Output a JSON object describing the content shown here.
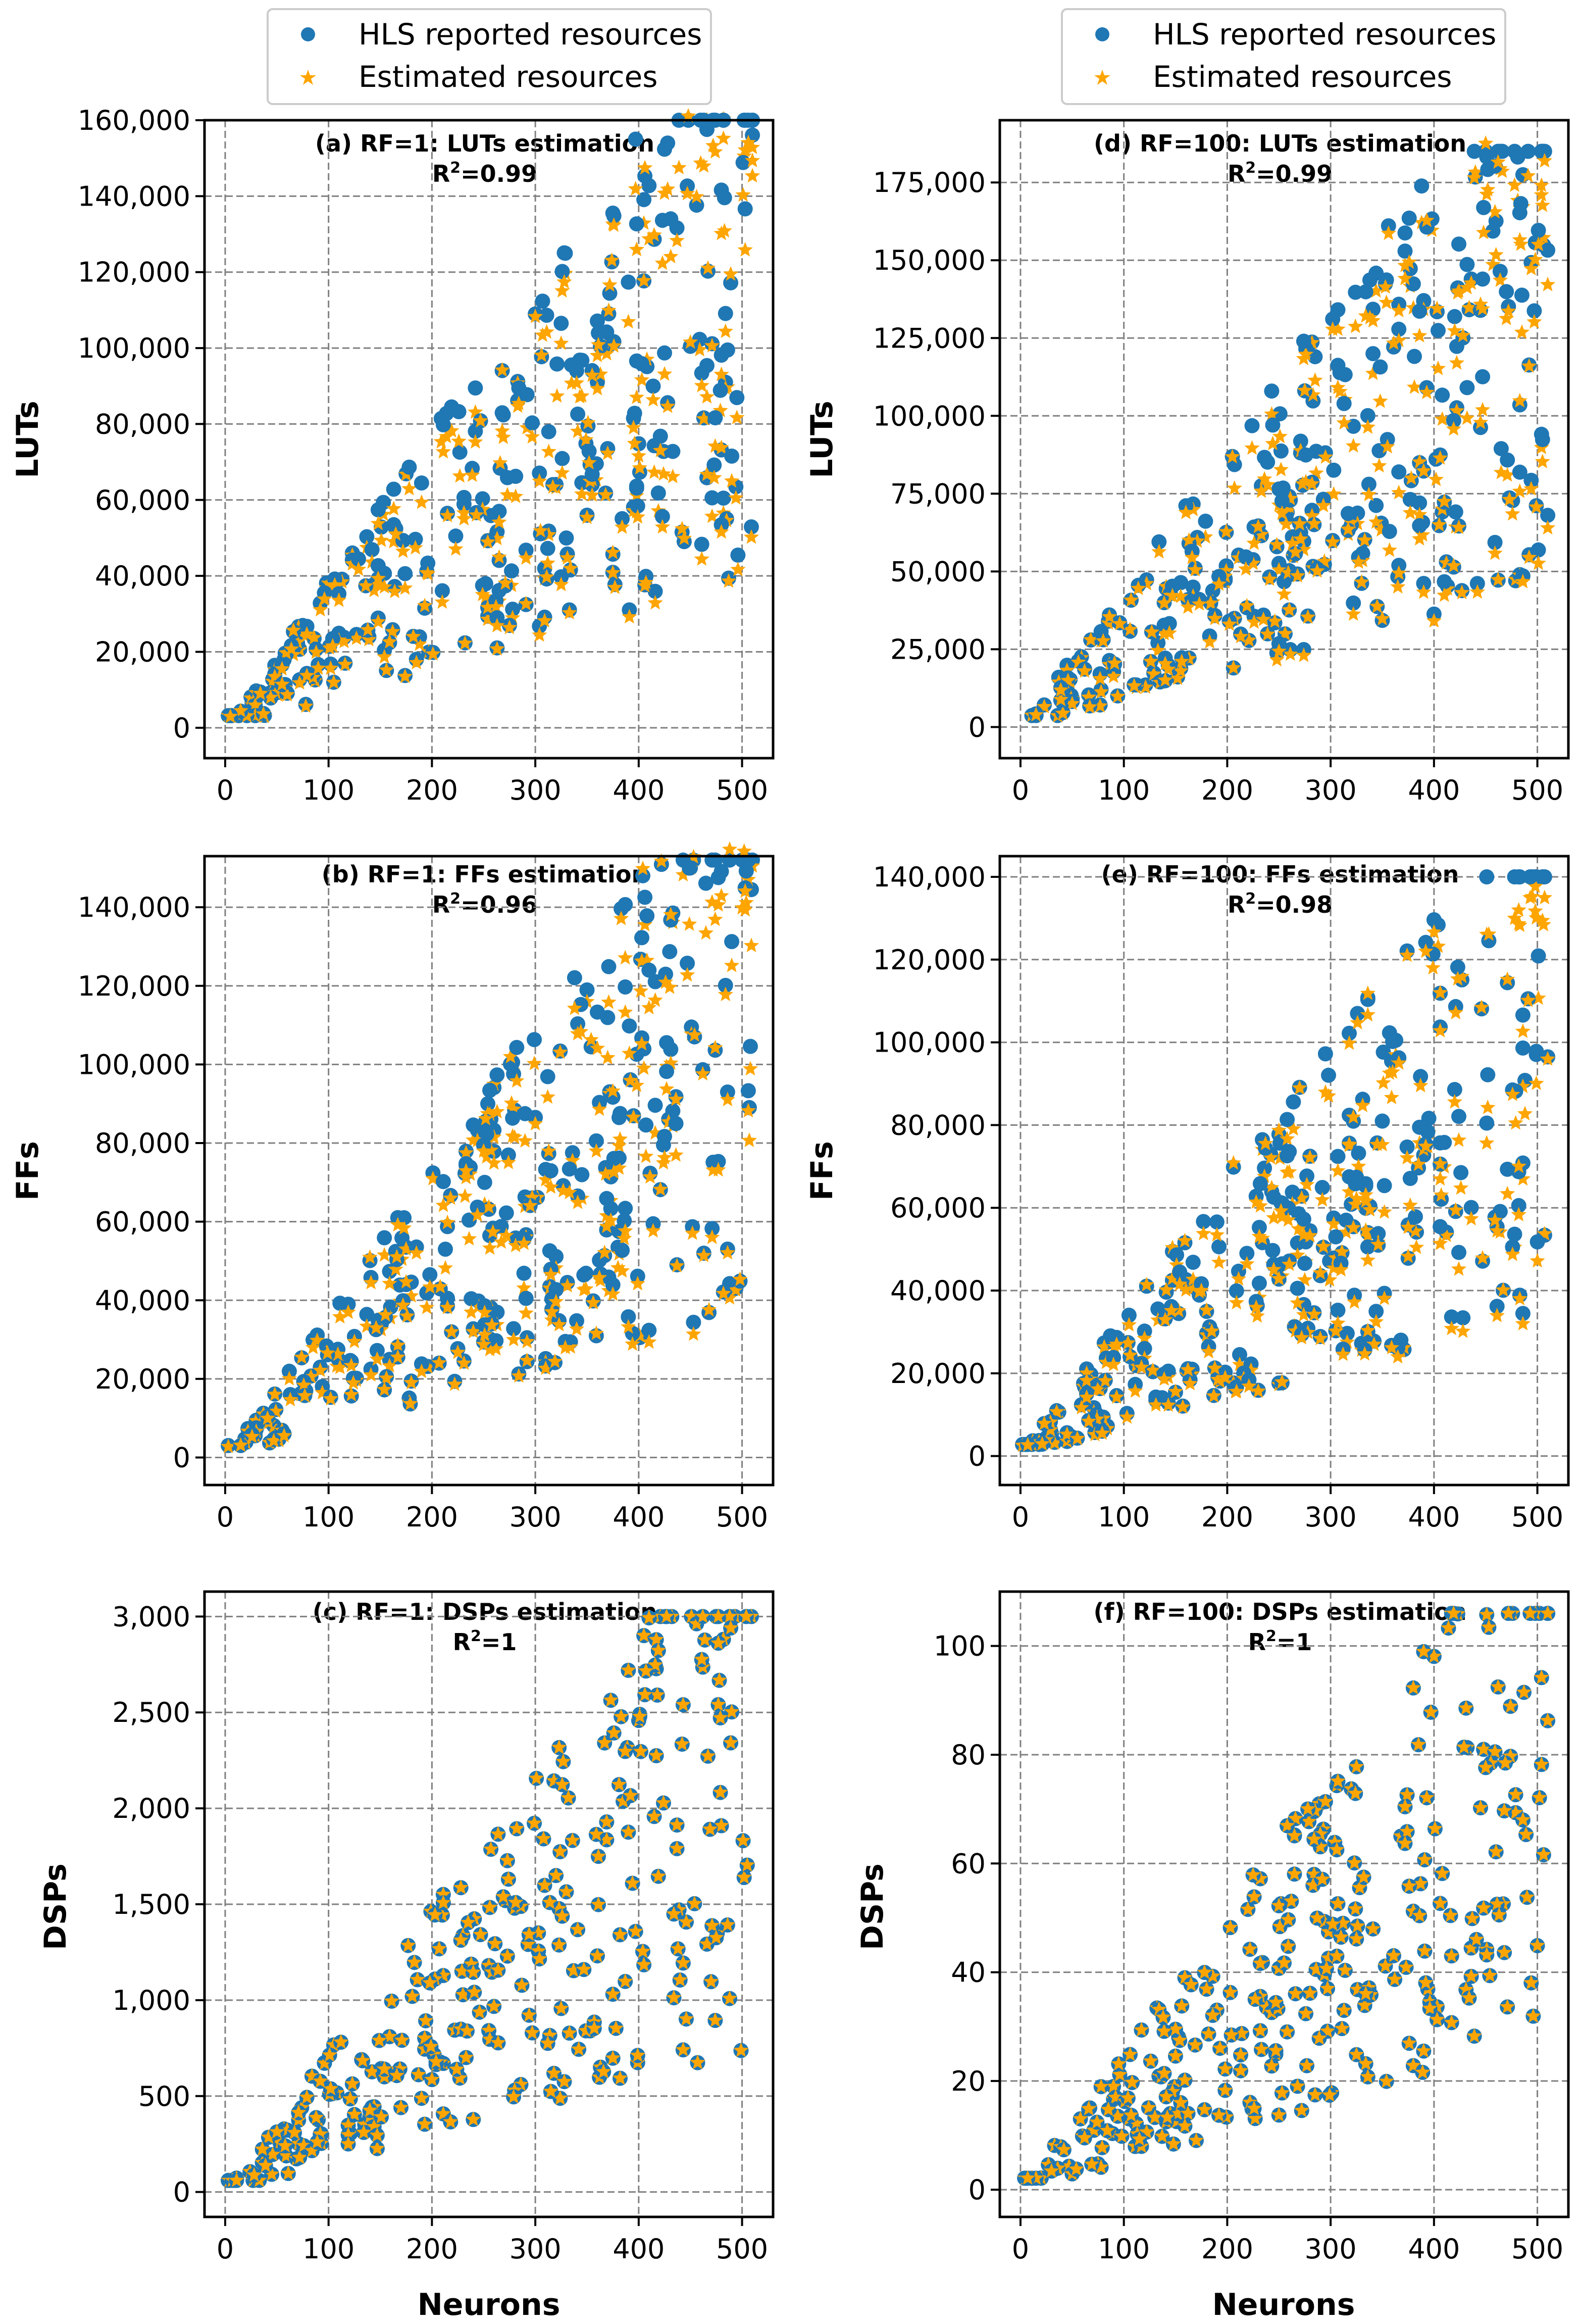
{
  "colors": {
    "reported": "#1f77b4",
    "estimated": "#ffa500",
    "grid": "#808080",
    "frame": "#000000"
  },
  "legend": {
    "reported_label": "HLS reported resources",
    "estimated_label": "Estimated resources"
  },
  "chart_data": [
    {
      "id": "a",
      "type": "scatter",
      "title": "(a) RF=1: LUTs estimation",
      "r2_prefix": "R",
      "r2_value": "=0.99",
      "ylabel": "LUTs",
      "xlabel": "",
      "xlim": [
        -20,
        530
      ],
      "ylim": [
        -8000,
        160000
      ],
      "xticks": [
        0,
        100,
        200,
        300,
        400,
        500
      ],
      "yticks": [
        0,
        20000,
        40000,
        60000,
        80000,
        100000,
        120000,
        140000,
        160000
      ],
      "ytick_labels": [
        "0",
        "20,000",
        "40,000",
        "60,000",
        "80,000",
        "100,000",
        "120,000",
        "140,000",
        "160,000"
      ],
      "ymax_est": 160000,
      "spread": 0.6,
      "sep": true
    },
    {
      "id": "b",
      "type": "scatter",
      "title": "(b) RF=1: FFs estimation",
      "r2_prefix": "R",
      "r2_value": "=0.96",
      "ylabel": "FFs",
      "xlabel": "",
      "xlim": [
        -20,
        530
      ],
      "ylim": [
        -7000,
        153000
      ],
      "xticks": [
        0,
        100,
        200,
        300,
        400,
        500
      ],
      "yticks": [
        0,
        20000,
        40000,
        60000,
        80000,
        100000,
        120000,
        140000
      ],
      "ytick_labels": [
        "0",
        "20,000",
        "40,000",
        "60,000",
        "80,000",
        "100,000",
        "120,000",
        "140,000"
      ],
      "ymax_est": 152000,
      "spread": 0.6,
      "sep": true
    },
    {
      "id": "c",
      "type": "scatter",
      "title": "(c) RF=1: DSPs estimation",
      "r2_prefix": "R",
      "r2_value": "=1",
      "ylabel": "DSPs",
      "xlabel": "Neurons",
      "xlim": [
        -20,
        530
      ],
      "ylim": [
        -130,
        3130
      ],
      "xticks": [
        0,
        100,
        200,
        300,
        400,
        500
      ],
      "yticks": [
        0,
        500,
        1000,
        1500,
        2000,
        2500,
        3000
      ],
      "ytick_labels": [
        "0",
        "500",
        "1,000",
        "1,500",
        "2,000",
        "2,500",
        "3,000"
      ],
      "ymax_est": 3000,
      "spread": 0.6,
      "sep": false
    },
    {
      "id": "d",
      "type": "scatter",
      "title": "(d) RF=100: LUTs estimation",
      "r2_prefix": "R",
      "r2_value": "=0.99",
      "ylabel": "LUTs",
      "xlabel": "",
      "xlim": [
        -20,
        530
      ],
      "ylim": [
        -10000,
        195000
      ],
      "xticks": [
        0,
        100,
        200,
        300,
        400,
        500
      ],
      "yticks": [
        0,
        25000,
        50000,
        75000,
        100000,
        125000,
        150000,
        175000
      ],
      "ytick_labels": [
        "0",
        "25,000",
        "50,000",
        "75,000",
        "100,000",
        "125,000",
        "150,000",
        "175,000"
      ],
      "ymax_est": 185000,
      "spread": 0.6,
      "sep": true
    },
    {
      "id": "e",
      "type": "scatter",
      "title": "(e) RF=100: FFs estimation",
      "r2_prefix": "R",
      "r2_value": "=0.98",
      "ylabel": "FFs",
      "xlabel": "",
      "xlim": [
        -20,
        530
      ],
      "ylim": [
        -7000,
        145000
      ],
      "xticks": [
        0,
        100,
        200,
        300,
        400,
        500
      ],
      "yticks": [
        0,
        20000,
        40000,
        60000,
        80000,
        100000,
        120000,
        140000
      ],
      "ytick_labels": [
        "0",
        "20,000",
        "40,000",
        "60,000",
        "80,000",
        "100,000",
        "120,000",
        "140,000"
      ],
      "ymax_est": 140000,
      "spread": 0.6,
      "sep": true
    },
    {
      "id": "f",
      "type": "scatter",
      "title": "(f) RF=100: DSPs estimation",
      "r2_prefix": "R",
      "r2_value": "=1",
      "ylabel": "DSPs",
      "xlabel": "Neurons",
      "xlim": [
        -20,
        530
      ],
      "ylim": [
        -5,
        110
      ],
      "xticks": [
        0,
        100,
        200,
        300,
        400,
        500
      ],
      "yticks": [
        0,
        20,
        40,
        60,
        80,
        100
      ],
      "ytick_labels": [
        "0",
        "20",
        "40",
        "60",
        "80",
        "100"
      ],
      "ymax_est": 106,
      "spread": 0.6,
      "sep": false
    }
  ]
}
